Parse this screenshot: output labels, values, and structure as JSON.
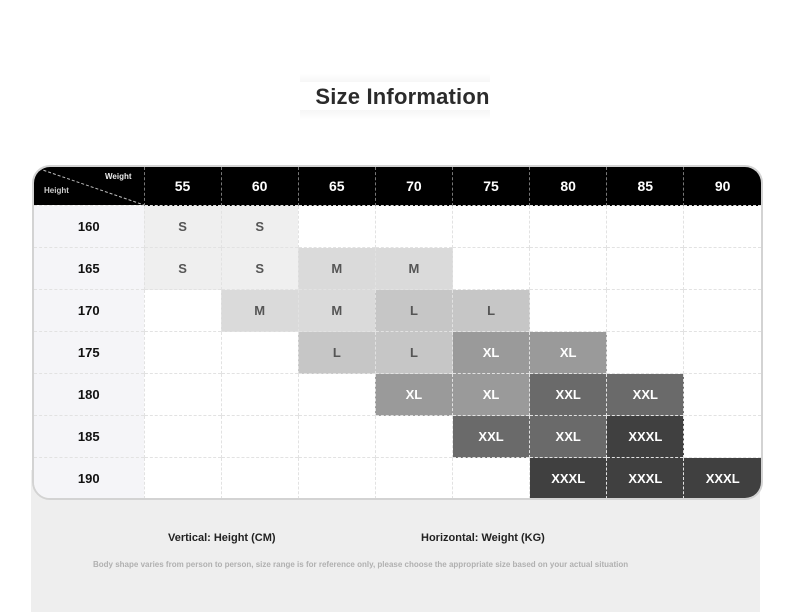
{
  "title": "Size Information",
  "corner": {
    "weight_label": "Weight",
    "height_label": "Height"
  },
  "weights": [
    "55",
    "60",
    "65",
    "70",
    "75",
    "80",
    "85",
    "90"
  ],
  "rows": [
    {
      "height": "160",
      "sizes": [
        "S",
        "S",
        "",
        "",
        "",
        "",
        "",
        ""
      ]
    },
    {
      "height": "165",
      "sizes": [
        "S",
        "S",
        "M",
        "M",
        "",
        "",
        "",
        ""
      ]
    },
    {
      "height": "170",
      "sizes": [
        "",
        "M",
        "M",
        "L",
        "L",
        "",
        "",
        ""
      ]
    },
    {
      "height": "175",
      "sizes": [
        "",
        "",
        "L",
        "L",
        "XL",
        "XL",
        "",
        ""
      ]
    },
    {
      "height": "180",
      "sizes": [
        "",
        "",
        "",
        "XL",
        "XL",
        "XXL",
        "XXL",
        ""
      ]
    },
    {
      "height": "185",
      "sizes": [
        "",
        "",
        "",
        "",
        "XXL",
        "XXL",
        "XXXL",
        ""
      ]
    },
    {
      "height": "190",
      "sizes": [
        "",
        "",
        "",
        "",
        "",
        "XXXL",
        "XXXL",
        "XXXL"
      ]
    }
  ],
  "legend": {
    "vertical": "Vertical: Height (CM)",
    "horizontal": "Horizontal: Weight (KG)"
  },
  "note": "Body shape varies from person to person, size range is for reference only, please choose the appropriate size based on your actual situation",
  "colors": {
    "header_bg": "#000000",
    "S": "#efefef",
    "M": "#dadada",
    "L": "#c6c6c6",
    "XL": "#9a9a9a",
    "XXL": "#6a6a6a",
    "XXXL": "#404040"
  }
}
